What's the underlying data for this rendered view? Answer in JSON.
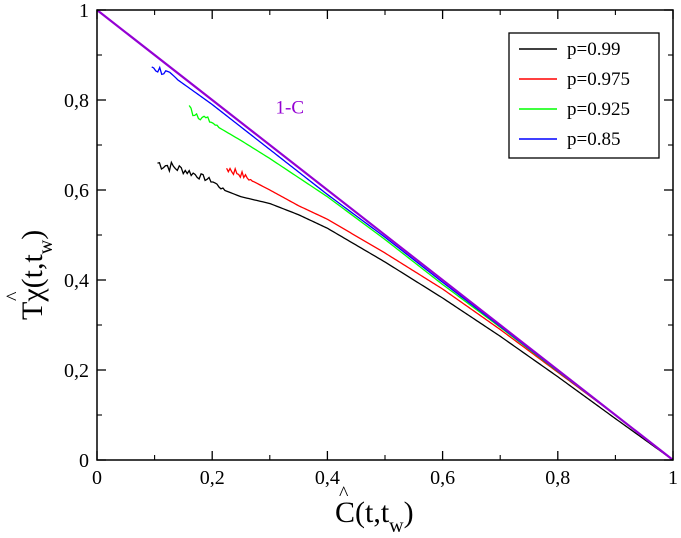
{
  "chart_data": {
    "type": "line",
    "title": "",
    "xlabel": {
      "main": "C(t,t",
      "sub": "w",
      "close": ")"
    },
    "ylabel": {
      "main": "Tχ(t,t",
      "sub": "w",
      "close": ")"
    },
    "xlim": [
      0,
      1
    ],
    "ylim": [
      0,
      1
    ],
    "x_ticks": [
      "0",
      "0,2",
      "0,4",
      "0,6",
      "0,8",
      "1"
    ],
    "y_ticks": [
      "0",
      "0,2",
      "0,4",
      "0,6",
      "0,8",
      "1"
    ],
    "x_tick_values": [
      0,
      0.2,
      0.4,
      0.6,
      0.8,
      1
    ],
    "y_tick_values": [
      0,
      0.2,
      0.4,
      0.6,
      0.8,
      1
    ],
    "legend_position": "top-right",
    "series": [
      {
        "name": "p=0.99",
        "color": "#000000",
        "noise_until": 0.22,
        "x": [
          0.105,
          0.15,
          0.2,
          0.22,
          0.25,
          0.3,
          0.35,
          0.4,
          0.5,
          0.6,
          0.7,
          0.8,
          0.9,
          1.0
        ],
        "y": [
          0.66,
          0.645,
          0.62,
          0.6,
          0.585,
          0.57,
          0.545,
          0.515,
          0.44,
          0.36,
          0.275,
          0.185,
          0.092,
          0.0
        ]
      },
      {
        "name": "p=0.975",
        "color": "#ff0000",
        "noise_until": 0.27,
        "x": [
          0.225,
          0.25,
          0.27,
          0.3,
          0.35,
          0.4,
          0.5,
          0.6,
          0.7,
          0.8,
          0.9,
          1.0
        ],
        "y": [
          0.65,
          0.635,
          0.62,
          0.6,
          0.565,
          0.535,
          0.46,
          0.38,
          0.29,
          0.195,
          0.1,
          0.0
        ]
      },
      {
        "name": "p=0.925",
        "color": "#00ff00",
        "noise_until": 0.21,
        "x": [
          0.16,
          0.2,
          0.21,
          0.25,
          0.3,
          0.4,
          0.5,
          0.6,
          0.7,
          0.8,
          0.9,
          1.0
        ],
        "y": [
          0.78,
          0.75,
          0.74,
          0.71,
          0.67,
          0.585,
          0.49,
          0.39,
          0.295,
          0.197,
          0.1,
          0.0
        ]
      },
      {
        "name": "p=0.85",
        "color": "#0000ff",
        "noise_until": 0.14,
        "x": [
          0.095,
          0.12,
          0.14,
          0.2,
          0.3,
          0.4,
          0.5,
          0.6,
          0.7,
          0.8,
          0.9,
          1.0
        ],
        "y": [
          0.875,
          0.86,
          0.845,
          0.79,
          0.69,
          0.59,
          0.495,
          0.395,
          0.297,
          0.198,
          0.1,
          0.0
        ]
      }
    ],
    "reference_line": {
      "label": "1-C",
      "color": "#9400d3",
      "x": [
        0,
        1
      ],
      "y": [
        1,
        0
      ]
    },
    "annotations": [
      {
        "text": "1-C",
        "color": "#9400d3",
        "at_x": 0.31,
        "at_y": 0.77
      }
    ]
  }
}
